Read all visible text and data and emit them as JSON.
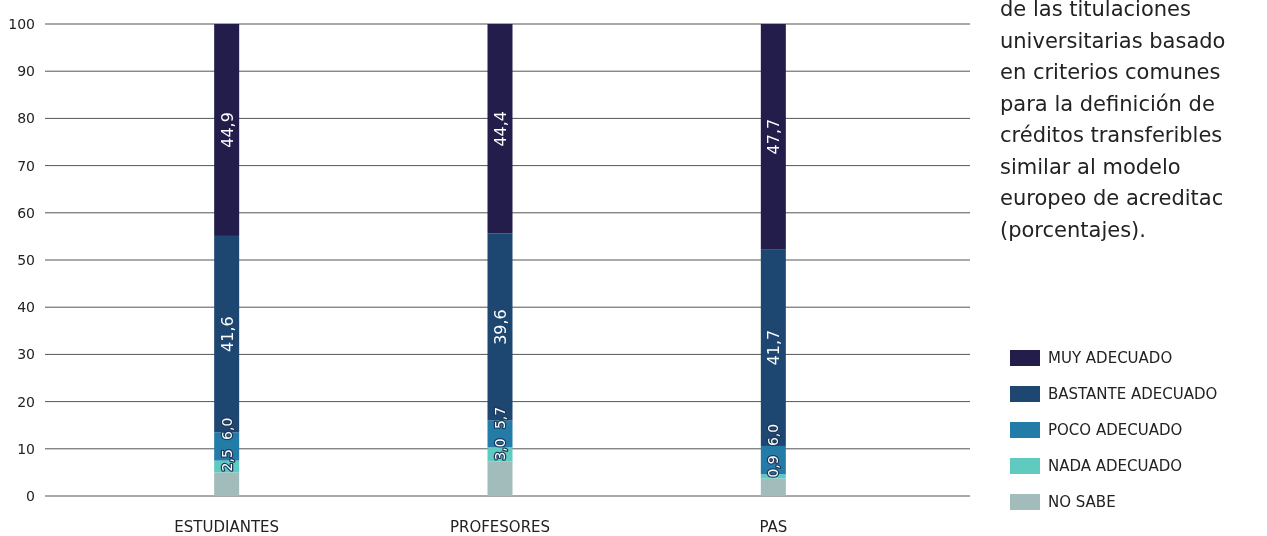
{
  "chart_data": {
    "type": "bar",
    "stacked": true,
    "title": "de las titulaciones universitarias basado en criterios comunes para la definición de créditos transferibles similar al modelo europeo de acreditac (porcentajes).",
    "categories": [
      "ESTUDIANTES",
      "PROFESORES",
      "PAS"
    ],
    "series": [
      {
        "name": "NO SABE",
        "color": "#a1bcbb",
        "values": [
          5.0,
          7.3,
          3.7
        ],
        "value_labels": [
          null,
          null,
          null
        ]
      },
      {
        "name": "NADA ADECUADO",
        "color": "#5ecac0",
        "values": [
          2.5,
          3.0,
          0.9
        ],
        "value_labels": [
          "2,5",
          "3,0",
          "0,9"
        ]
      },
      {
        "name": "POCO ADECUADO",
        "color": "#237ca8",
        "values": [
          6.0,
          5.7,
          6.0
        ],
        "value_labels": [
          "6,0",
          "5,7",
          "6,0"
        ]
      },
      {
        "name": "BASTANTE ADECUADO",
        "color": "#1d4670",
        "values": [
          41.6,
          39.6,
          41.7
        ],
        "value_labels": [
          "41,6",
          "39,6",
          "41,7"
        ]
      },
      {
        "name": "MUY ADECUADO",
        "color": "#221d4b",
        "values": [
          44.9,
          44.4,
          47.7
        ],
        "value_labels": [
          "44,9",
          "44,4",
          "47,7"
        ]
      }
    ],
    "ylim": [
      0,
      100
    ],
    "yticks": [
      0,
      10,
      20,
      30,
      40,
      50,
      60,
      70,
      80,
      90,
      100
    ],
    "grid": "y",
    "legend": "right"
  }
}
